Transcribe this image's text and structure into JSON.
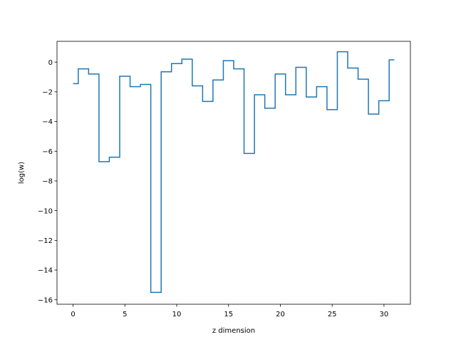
{
  "chart_data": {
    "type": "line",
    "drawstyle": "steps-mid",
    "xlabel": "z dimension",
    "ylabel": "log(w)",
    "xlim": [
      -1.55,
      32.55
    ],
    "ylim": [
      -16.3,
      1.4
    ],
    "xticks": [
      0,
      5,
      10,
      15,
      20,
      25,
      30
    ],
    "xtick_labels": [
      "0",
      "5",
      "10",
      "15",
      "20",
      "25",
      "30"
    ],
    "yticks": [
      0,
      -2,
      -4,
      -6,
      -8,
      -10,
      -12,
      -14,
      -16
    ],
    "ytick_labels": [
      "0",
      "−2",
      "−4",
      "−6",
      "−8",
      "−10",
      "−12",
      "−14",
      "−16"
    ],
    "grid": false,
    "series": [
      {
        "color": "#1f77b4",
        "x": [
          0,
          1,
          2,
          3,
          4,
          5,
          6,
          7,
          8,
          9,
          10,
          11,
          12,
          13,
          14,
          15,
          16,
          17,
          18,
          19,
          20,
          21,
          22,
          23,
          24,
          25,
          26,
          27,
          28,
          29,
          30,
          31
        ],
        "values": [
          -1.45,
          -0.45,
          -0.8,
          -6.7,
          -6.4,
          -0.95,
          -1.65,
          -1.5,
          -15.5,
          -0.65,
          -0.1,
          0.2,
          -1.6,
          -2.65,
          -1.2,
          0.1,
          -0.45,
          -6.15,
          -2.2,
          -3.1,
          -0.8,
          -2.2,
          -0.35,
          -2.35,
          -1.65,
          -3.2,
          0.7,
          -0.4,
          -1.15,
          -3.5,
          -2.6,
          0.15
        ]
      }
    ]
  }
}
